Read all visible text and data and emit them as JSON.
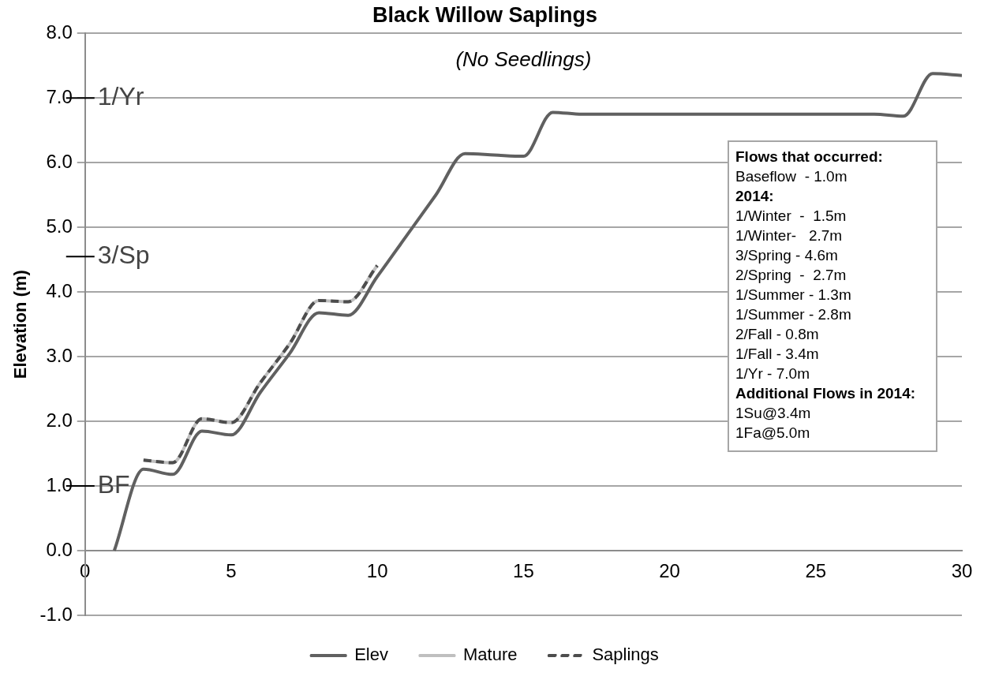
{
  "chart_data": {
    "type": "line",
    "title": "Black Willow Saplings",
    "ylabel": "Elevation (m)",
    "annotations": [
      "(No Seedlings)",
      "Flows that occurred:",
      "Baseflow  - 1.0m",
      "2014:",
      "1/Winter  -  1.5m",
      "1/Winter-   2.7m",
      "3/Spring - 4.6m",
      "2/Spring  -  2.7m",
      "1/Summer - 1.3m",
      "1/Summer - 2.8m",
      "2/Fall - 0.8m",
      "1/Fall - 3.4m",
      "1/Yr - 7.0m",
      "Additional Flows in 2014:",
      "1Su@3.4m",
      "1Fa@5.0m"
    ],
    "series": [
      {
        "name": "Elev",
        "color": "#606060",
        "x": [
          1,
          2,
          3,
          4,
          5,
          6,
          7,
          8,
          9,
          10,
          11,
          12,
          13,
          14,
          15,
          16,
          17,
          18,
          19,
          20,
          21,
          22,
          23,
          24,
          25,
          26,
          27,
          28,
          29,
          30
        ],
        "values": [
          0.0,
          1.26,
          1.18,
          1.85,
          1.79,
          2.45,
          3.05,
          3.68,
          3.64,
          4.24,
          4.87,
          5.5,
          6.14,
          6.12,
          6.1,
          6.78,
          6.75,
          6.75,
          6.75,
          6.75,
          6.75,
          6.75,
          6.75,
          6.75,
          6.75,
          6.75,
          6.75,
          6.72,
          7.38,
          7.35
        ]
      },
      {
        "name": "Mature",
        "color": "#bfbfbf",
        "x": [
          2,
          3,
          4,
          5,
          6,
          7,
          8,
          9,
          10
        ],
        "values": [
          1.4,
          1.36,
          2.04,
          1.98,
          2.6,
          3.2,
          3.87,
          3.85,
          4.41
        ]
      },
      {
        "name": "Saplings",
        "color": "#4d4d4d",
        "line_style": "dashed",
        "x": [
          2,
          3,
          4,
          5,
          6,
          7,
          8,
          9,
          10
        ],
        "values": [
          1.4,
          1.36,
          2.04,
          1.98,
          2.6,
          3.2,
          3.87,
          3.85,
          4.41
        ]
      }
    ],
    "xlim": [
      0,
      30
    ],
    "xticks": [
      0,
      5,
      10,
      15,
      20,
      25,
      30
    ],
    "ylim": [
      -1,
      8
    ],
    "yticks": [
      {
        "value": -1,
        "label": "-1.0"
      },
      {
        "value": 0,
        "label": "0.0"
      },
      {
        "value": 1,
        "label": "1.0"
      },
      {
        "value": 2,
        "label": "2.0"
      },
      {
        "value": 3,
        "label": "3.0"
      },
      {
        "value": 4,
        "label": "4.0"
      },
      {
        "value": 5,
        "label": "5.0"
      },
      {
        "value": 6,
        "label": "6.0"
      },
      {
        "value": 7,
        "label": "7.0"
      },
      {
        "value": 8,
        "label": "8.0"
      }
    ],
    "ref_lines": [
      {
        "axis": "y",
        "value": 7.0,
        "label": "1/Yr"
      },
      {
        "axis": "y",
        "value": 4.55,
        "label": "3/Sp"
      },
      {
        "axis": "y",
        "value": 1.0,
        "label": "BF"
      }
    ],
    "grid": "y",
    "legend": "bottom",
    "marker": "none"
  }
}
